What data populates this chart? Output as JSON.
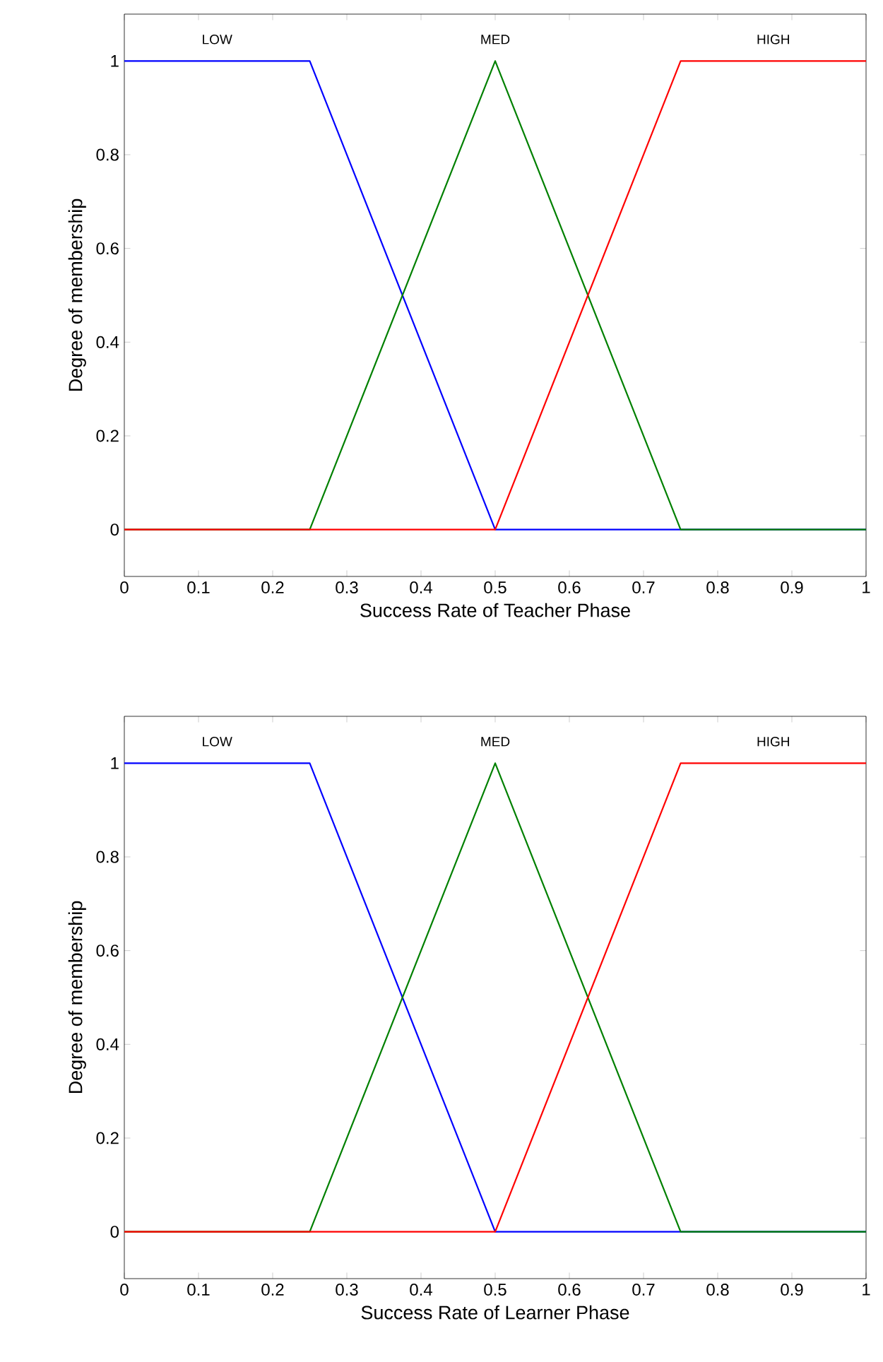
{
  "chart_data": [
    {
      "type": "line",
      "xlabel": "Success Rate of Teacher Phase",
      "ylabel": "Degree of membership",
      "xlim": [
        0,
        1
      ],
      "ylim": [
        -0.1,
        1.1
      ],
      "xticks": [
        0,
        0.1,
        0.2,
        0.3,
        0.4,
        0.5,
        0.6,
        0.7,
        0.8,
        0.9,
        1
      ],
      "yticks": [
        0,
        0.2,
        0.4,
        0.6,
        0.8,
        1
      ],
      "grid": false,
      "legend": false,
      "marker": "none",
      "line_style": "solid",
      "series": [
        {
          "name": "LOW",
          "color": "#0000ff",
          "x": [
            0,
            0.25,
            0.5,
            1
          ],
          "values": [
            1,
            1,
            0,
            0
          ]
        },
        {
          "name": "MED",
          "color": "#008000",
          "x": [
            0,
            0.25,
            0.5,
            0.75,
            1
          ],
          "values": [
            0,
            0,
            1,
            0,
            0
          ]
        },
        {
          "name": "HIGH",
          "color": "#ff0000",
          "x": [
            0,
            0.5,
            0.75,
            1
          ],
          "values": [
            0,
            0,
            1,
            1
          ]
        }
      ]
    },
    {
      "type": "line",
      "xlabel": "Success Rate of Learner Phase",
      "ylabel": "Degree of membership",
      "xlim": [
        0,
        1
      ],
      "ylim": [
        -0.1,
        1.1
      ],
      "xticks": [
        0,
        0.1,
        0.2,
        0.3,
        0.4,
        0.5,
        0.6,
        0.7,
        0.8,
        0.9,
        1
      ],
      "yticks": [
        0,
        0.2,
        0.4,
        0.6,
        0.8,
        1
      ],
      "grid": false,
      "legend": false,
      "marker": "none",
      "line_style": "solid",
      "series": [
        {
          "name": "LOW",
          "color": "#0000ff",
          "x": [
            0,
            0.25,
            0.5,
            1
          ],
          "values": [
            1,
            1,
            0,
            0
          ]
        },
        {
          "name": "MED",
          "color": "#008000",
          "x": [
            0,
            0.25,
            0.5,
            0.75,
            1
          ],
          "values": [
            0,
            0,
            1,
            0,
            0
          ]
        },
        {
          "name": "HIGH",
          "color": "#ff0000",
          "x": [
            0,
            0.5,
            0.75,
            1
          ],
          "values": [
            0,
            0,
            1,
            1
          ]
        }
      ]
    }
  ]
}
